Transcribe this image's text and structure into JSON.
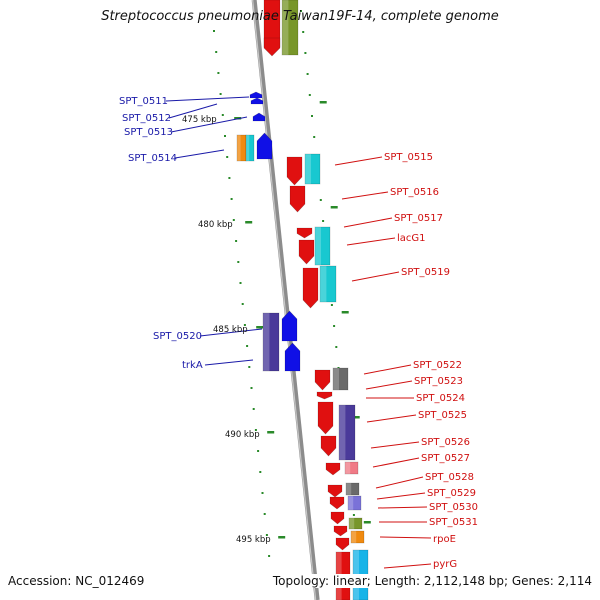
{
  "title": "Streptococcus pneumoniae Taiwan19F-14, complete genome",
  "footer": {
    "accession": "Accession: NC_012469",
    "summary": "Topology: linear; Length: 2,112,148 bp; Genes: 2,114"
  },
  "scale_labels": [
    "475 kbp",
    "480 kbp",
    "485 kbp",
    "490 kbp",
    "495 kbp"
  ],
  "genes_left": [
    "SPT_0511",
    "SPT_0512",
    "SPT_0513",
    "SPT_0514",
    "SPT_0520",
    "trkA"
  ],
  "genes_right": [
    "SPT_0515",
    "SPT_0516",
    "SPT_0517",
    "lacG1",
    "SPT_0519",
    "SPT_0522",
    "SPT_0523",
    "SPT_0524",
    "SPT_0525",
    "SPT_0526",
    "SPT_0527",
    "SPT_0528",
    "SPT_0529",
    "SPT_0530",
    "SPT_0531",
    "rpoE",
    "pyrG"
  ],
  "colors": {
    "left_label": "#1a1aa8",
    "right_label": "#d01010",
    "backbone": "#8c8c8c",
    "ruler_tick": "#2a8a2a",
    "red": "#e01010",
    "blue": "#1010e6",
    "cyan": "#18c8d0",
    "navy": "#4a3a9a",
    "olive": "#78962a",
    "orange": "#f08a10",
    "gray": "#6a6a6a",
    "pink": "#f07a86",
    "lavender": "#7a72d8"
  }
}
